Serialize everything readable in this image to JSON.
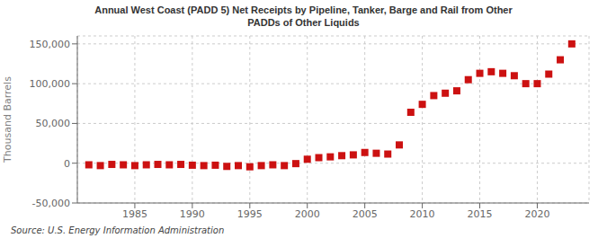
{
  "chart_data": {
    "type": "scatter",
    "title": "Annual West Coast (PADD 5) Net Receipts by Pipeline, Tanker, Barge and Rail from Other\nPADDs of Other Liquids",
    "y_label": "Thousand Barrels",
    "annotations": [
      "Source: U.S. Energy Information Administration"
    ],
    "x": [
      1981,
      1982,
      1983,
      1984,
      1985,
      1986,
      1987,
      1988,
      1989,
      1990,
      1991,
      1992,
      1993,
      1994,
      1995,
      1996,
      1997,
      1998,
      1999,
      2000,
      2001,
      2002,
      2003,
      2004,
      2005,
      2006,
      2007,
      2008,
      2009,
      2010,
      2011,
      2012,
      2013,
      2014,
      2015,
      2016,
      2017,
      2018,
      2019,
      2020,
      2021,
      2022,
      2023
    ],
    "values": [
      -2000,
      -3000,
      -1500,
      -2000,
      -3000,
      -2000,
      -1500,
      -2000,
      -1500,
      -2500,
      -3000,
      -2500,
      -4000,
      -3000,
      -4500,
      -3000,
      -2000,
      -3000,
      -500,
      5000,
      7000,
      8000,
      9500,
      10500,
      13500,
      12500,
      11500,
      23000,
      64000,
      74000,
      85000,
      88000,
      91000,
      105000,
      113000,
      115000,
      113000,
      110000,
      100000,
      100000,
      112000,
      130000,
      150000
    ],
    "color": "#cc1111",
    "marker": "square",
    "xlim": [
      1980,
      2024.5
    ],
    "xticks": [
      1985,
      1990,
      1995,
      2000,
      2005,
      2010,
      2015,
      2020
    ],
    "ylim": [
      -50000,
      160000
    ],
    "yticks": [
      {
        "value": -50000,
        "label": "-50,000"
      },
      0,
      {
        "value": 50000,
        "label": "50,000"
      },
      {
        "value": 100000,
        "label": "100,000"
      },
      {
        "value": 150000,
        "label": "150,000"
      }
    ],
    "grid": true
  }
}
